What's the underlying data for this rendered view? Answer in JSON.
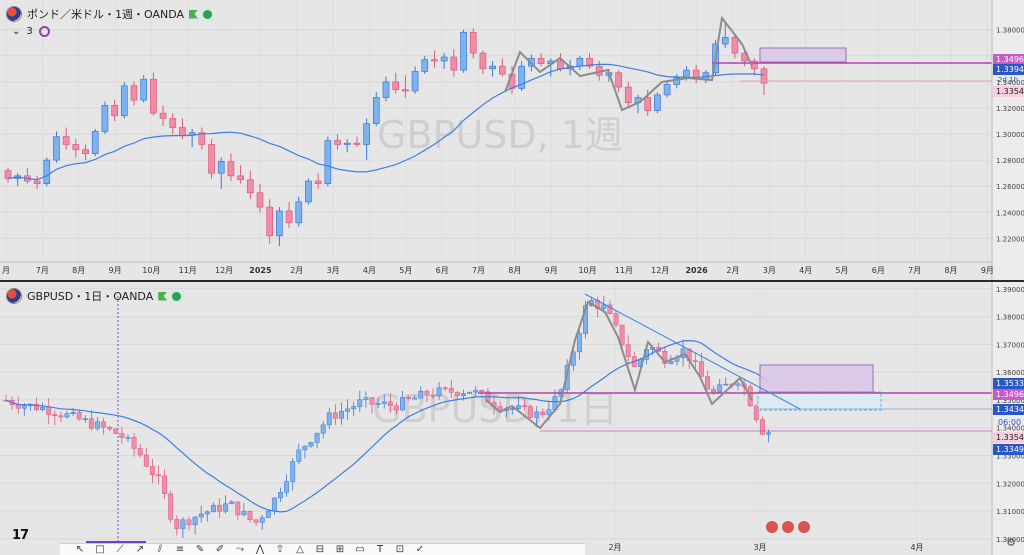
{
  "top_chart": {
    "legend_title": "ポンド／米ドル・1週・OANDA",
    "sub_legend_value": "3",
    "watermark": "GBPUSD, 1週",
    "price_labels": {
      "current": "1.33944",
      "level": "1.34965",
      "timer": "2d 1h",
      "low": "1.33540"
    }
  },
  "bottom_chart": {
    "legend_title": "GBPUSD・1日・OANDA",
    "watermark": "GBPUSD, 1日",
    "price_labels": {
      "level_upper": "1.35334",
      "level": "1.34965",
      "current": "1.34341",
      "timer": "06:00",
      "low": "1.33540",
      "last": "1.33492"
    }
  },
  "colors": {
    "bull": "#7eb2ef",
    "bull_edge": "#3b78d8",
    "bear": "#f08ca8",
    "bear_edge": "#d75c7e",
    "ma": "#3f7fe0",
    "pattern": "#8c8c8c",
    "level_line": "#b040b0",
    "zone_fill": "#d8c6e6",
    "zone_edge": "#9a6fb6",
    "blue_label": "#2857c9",
    "pink_label": "#f7cde0"
  },
  "chart_data": [
    {
      "type": "candlestick",
      "title": "ポンド／米ドル・1週・OANDA",
      "y_ticks": [
        "1.38000",
        "1.36000",
        "1.34000",
        "1.32000",
        "1.30000",
        "1.28000",
        "1.26000",
        "1.24000",
        "1.22000"
      ],
      "ylim": [
        1.205,
        1.392
      ],
      "x_ticks": [
        "月",
        "7月",
        "8月",
        "9月",
        "10月",
        "11月",
        "12月",
        "2025",
        "2月",
        "3月",
        "4月",
        "5月",
        "6月",
        "7月",
        "8月",
        "9月",
        "10月",
        "11月",
        "12月",
        "2026",
        "2月",
        "3月",
        "4月",
        "5月",
        "6月",
        "7月",
        "8月",
        "9月"
      ],
      "ohlc": [
        [
          1.272,
          1.274,
          1.263,
          1.266
        ],
        [
          1.266,
          1.27,
          1.26,
          1.268
        ],
        [
          1.268,
          1.274,
          1.262,
          1.264
        ],
        [
          1.264,
          1.268,
          1.258,
          1.262
        ],
        [
          1.262,
          1.282,
          1.26,
          1.28
        ],
        [
          1.28,
          1.302,
          1.278,
          1.298
        ],
        [
          1.298,
          1.305,
          1.288,
          1.292
        ],
        [
          1.292,
          1.296,
          1.282,
          1.288
        ],
        [
          1.288,
          1.292,
          1.28,
          1.285
        ],
        [
          1.285,
          1.304,
          1.283,
          1.302
        ],
        [
          1.302,
          1.325,
          1.3,
          1.322
        ],
        [
          1.322,
          1.326,
          1.31,
          1.314
        ],
        [
          1.314,
          1.34,
          1.312,
          1.337
        ],
        [
          1.337,
          1.34,
          1.322,
          1.326
        ],
        [
          1.326,
          1.345,
          1.324,
          1.342
        ],
        [
          1.342,
          1.347,
          1.314,
          1.316
        ],
        [
          1.316,
          1.322,
          1.306,
          1.312
        ],
        [
          1.312,
          1.316,
          1.3,
          1.305
        ],
        [
          1.305,
          1.312,
          1.296,
          1.299
        ],
        [
          1.299,
          1.304,
          1.29,
          1.301
        ],
        [
          1.301,
          1.305,
          1.288,
          1.292
        ],
        [
          1.292,
          1.296,
          1.266,
          1.27
        ],
        [
          1.27,
          1.282,
          1.258,
          1.279
        ],
        [
          1.279,
          1.285,
          1.264,
          1.268
        ],
        [
          1.268,
          1.276,
          1.262,
          1.265
        ],
        [
          1.265,
          1.272,
          1.25,
          1.255
        ],
        [
          1.255,
          1.262,
          1.24,
          1.244
        ],
        [
          1.244,
          1.25,
          1.216,
          1.222
        ],
        [
          1.222,
          1.244,
          1.214,
          1.241
        ],
        [
          1.241,
          1.248,
          1.228,
          1.232
        ],
        [
          1.232,
          1.252,
          1.229,
          1.248
        ],
        [
          1.248,
          1.266,
          1.246,
          1.264
        ],
        [
          1.264,
          1.27,
          1.258,
          1.262
        ],
        [
          1.262,
          1.298,
          1.26,
          1.295
        ],
        [
          1.295,
          1.3,
          1.288,
          1.292
        ],
        [
          1.292,
          1.296,
          1.286,
          1.293
        ],
        [
          1.293,
          1.298,
          1.29,
          1.292
        ],
        [
          1.292,
          1.312,
          1.28,
          1.308
        ],
        [
          1.308,
          1.332,
          1.306,
          1.328
        ],
        [
          1.328,
          1.344,
          1.325,
          1.34
        ],
        [
          1.34,
          1.347,
          1.331,
          1.334
        ],
        [
          1.334,
          1.345,
          1.328,
          1.333
        ],
        [
          1.333,
          1.352,
          1.331,
          1.348
        ],
        [
          1.348,
          1.36,
          1.346,
          1.357
        ],
        [
          1.357,
          1.364,
          1.351,
          1.356
        ],
        [
          1.356,
          1.362,
          1.35,
          1.359
        ],
        [
          1.359,
          1.365,
          1.344,
          1.349
        ],
        [
          1.349,
          1.38,
          1.347,
          1.378
        ],
        [
          1.378,
          1.381,
          1.358,
          1.362
        ],
        [
          1.362,
          1.364,
          1.346,
          1.35
        ],
        [
          1.35,
          1.356,
          1.344,
          1.352
        ],
        [
          1.352,
          1.358,
          1.344,
          1.346
        ],
        [
          1.346,
          1.352,
          1.331,
          1.335
        ],
        [
          1.335,
          1.356,
          1.333,
          1.352
        ],
        [
          1.352,
          1.361,
          1.348,
          1.358
        ],
        [
          1.358,
          1.362,
          1.352,
          1.354
        ],
        [
          1.354,
          1.358,
          1.344,
          1.356
        ],
        [
          1.356,
          1.362,
          1.348,
          1.35
        ],
        [
          1.35,
          1.357,
          1.345,
          1.352
        ],
        [
          1.352,
          1.36,
          1.349,
          1.358
        ],
        [
          1.358,
          1.362,
          1.35,
          1.352
        ],
        [
          1.352,
          1.356,
          1.341,
          1.345
        ],
        [
          1.345,
          1.35,
          1.34,
          1.347
        ],
        [
          1.347,
          1.349,
          1.332,
          1.336
        ],
        [
          1.336,
          1.34,
          1.32,
          1.324
        ],
        [
          1.324,
          1.33,
          1.316,
          1.328
        ],
        [
          1.328,
          1.334,
          1.314,
          1.318
        ],
        [
          1.318,
          1.332,
          1.316,
          1.33
        ],
        [
          1.33,
          1.341,
          1.328,
          1.338
        ],
        [
          1.338,
          1.346,
          1.335,
          1.343
        ],
        [
          1.343,
          1.352,
          1.341,
          1.349
        ],
        [
          1.349,
          1.353,
          1.339,
          1.342
        ],
        [
          1.342,
          1.349,
          1.339,
          1.347
        ],
        [
          1.347,
          1.372,
          1.345,
          1.369
        ],
        [
          1.369,
          1.386,
          1.366,
          1.374
        ],
        [
          1.374,
          1.376,
          1.358,
          1.362
        ],
        [
          1.362,
          1.364,
          1.352,
          1.356
        ],
        [
          1.356,
          1.358,
          1.345,
          1.35
        ],
        [
          1.35,
          1.352,
          1.33,
          1.339
        ]
      ],
      "ma_period": "20"
    },
    {
      "type": "candlestick",
      "title": "GBPUSD・1日・OANDA",
      "y_ticks": [
        "1.39000",
        "1.38000",
        "1.37000",
        "1.36000",
        "1.35000",
        "1.34000",
        "1.33000",
        "1.32000",
        "1.31000",
        "1.30000"
      ],
      "ylim": [
        1.296,
        1.391
      ],
      "x_ticks": [
        "2月",
        "3月",
        "4月"
      ]
    }
  ]
}
